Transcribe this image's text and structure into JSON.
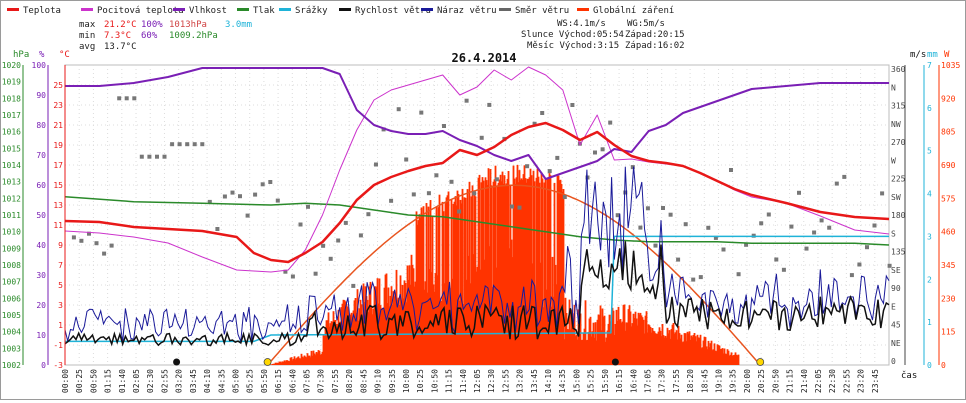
{
  "chart_data": {
    "type": "line",
    "title": "26.4.2014",
    "legend": [
      {
        "name": "Teplota",
        "color": "#e81818"
      },
      {
        "name": "Pocitová teplota",
        "color": "#cc33cc"
      },
      {
        "name": "Vlhkost",
        "color": "#7a1fb5"
      },
      {
        "name": "Tlak",
        "color": "#2a8a2a"
      },
      {
        "name": "Srážky",
        "color": "#1fb3d8"
      },
      {
        "name": "Rychlost větru",
        "color": "#111111"
      },
      {
        "name": "Náraz větru",
        "color": "#1a1a99"
      },
      {
        "name": "Směr větru",
        "color": "#666666"
      },
      {
        "name": "Globální záření",
        "color": "#ff3300"
      }
    ],
    "summary": {
      "max_label": "max",
      "max_temp": "21.2°C",
      "max_hum": "100%",
      "max_press": "1013hPa",
      "max_rain": "3.0mm",
      "min_label": "min",
      "min_temp": "7.3°C",
      "min_hum": "60%",
      "min_press": "1009.2hPa",
      "avg_label": "avg",
      "avg_temp": "13.7°C"
    },
    "info": {
      "ws": "WS:4.1m/s",
      "wg": "WG:5m/s",
      "sun": "Slunce Východ:05:54",
      "sun_set": "Západ:20:15",
      "moon": "Měsíc Východ:3:15",
      "moon_set": "Západ:16:02"
    },
    "axes": {
      "hpa_unit": "hPa",
      "pct_unit": "%",
      "c_unit": "°C",
      "ms_unit": "m/s",
      "mm_unit": "mm",
      "w_unit": "W",
      "hpa_ticks": [
        "1020",
        "1019",
        "1018",
        "1017",
        "1016",
        "1015",
        "1014",
        "1013",
        "1012",
        "1011",
        "1010",
        "1009",
        "1008",
        "1007",
        "1006",
        "1005",
        "1004",
        "1003",
        "1002"
      ],
      "pct_ticks": [
        "100",
        "90",
        "80",
        "70",
        "60",
        "50",
        "40",
        "30",
        "20",
        "10",
        "0"
      ],
      "c_ticks": [
        "25",
        "23",
        "21",
        "19",
        "17",
        "15",
        "13",
        "11",
        "9",
        "7",
        "5",
        "3",
        "1",
        "-1",
        "-3"
      ],
      "dir_ticks": [
        "360",
        "N",
        "315",
        "NW",
        "270",
        "W",
        "225",
        "SW",
        "180",
        "S",
        "135",
        "SE",
        "90",
        "E",
        "45",
        "NE",
        "0"
      ],
      "mm_ticks": [
        "7",
        "6",
        "5",
        "4",
        "3",
        "2",
        "1",
        "0"
      ],
      "w_ticks": [
        "1035",
        "920",
        "805",
        "690",
        "575",
        "460",
        "345",
        "230",
        "115",
        "0"
      ],
      "time_ticks": [
        "00:00",
        "00:25",
        "00:50",
        "01:15",
        "01:40",
        "02:05",
        "02:30",
        "02:55",
        "03:20",
        "03:45",
        "04:10",
        "04:35",
        "05:00",
        "05:25",
        "05:50",
        "06:15",
        "06:40",
        "07:05",
        "07:30",
        "07:55",
        "08:20",
        "08:45",
        "09:10",
        "09:35",
        "10:00",
        "10:25",
        "10:50",
        "11:15",
        "11:40",
        "12:05",
        "12:30",
        "12:55",
        "13:20",
        "13:45",
        "14:10",
        "14:35",
        "15:00",
        "15:25",
        "15:50",
        "16:15",
        "16:40",
        "17:05",
        "17:30",
        "17:55",
        "18:20",
        "18:45",
        "19:10",
        "19:35",
        "20:00",
        "20:25",
        "20:50",
        "21:15",
        "21:40",
        "22:05",
        "22:30",
        "22:55",
        "23:20",
        "23:45"
      ],
      "time_unit": "čas"
    },
    "ranges": {
      "temp_c": [
        -3,
        27
      ],
      "humidity_pct": [
        0,
        100
      ],
      "pressure_hpa": [
        1002,
        1020
      ],
      "wind_ms": [
        0,
        7
      ],
      "rain_mm": [
        0,
        7
      ],
      "radiation_w": [
        0,
        1035
      ],
      "direction_deg": [
        0,
        360
      ]
    },
    "series": [
      {
        "name": "Teplota",
        "unit": "°C",
        "x_hours": [
          0,
          1,
          2,
          3,
          4,
          5,
          5.5,
          6,
          6.5,
          7,
          7.5,
          8,
          8.5,
          9,
          9.5,
          10,
          10.5,
          11,
          11.5,
          12,
          12.5,
          13,
          13.5,
          14,
          14.5,
          15,
          15.5,
          16,
          16.5,
          17,
          17.5,
          18,
          18.5,
          19,
          19.5,
          20,
          21,
          22,
          23,
          24
        ],
        "values": [
          11.4,
          11.3,
          10.8,
          10.6,
          10.4,
          9.8,
          8.2,
          7.5,
          7.3,
          8.2,
          9.3,
          11.2,
          13.5,
          15.0,
          15.8,
          16.4,
          16.9,
          17.2,
          18.5,
          18.0,
          18.8,
          20.0,
          20.8,
          21.2,
          20.5,
          19.5,
          20.3,
          19.0,
          17.9,
          17.4,
          17.2,
          16.9,
          16.2,
          15.4,
          14.6,
          14.0,
          13.2,
          12.3,
          11.8,
          11.6
        ]
      },
      {
        "name": "Pocitová teplota",
        "unit": "°C",
        "x_hours": [
          0,
          1,
          2,
          3,
          4,
          5,
          5.5,
          6,
          6.5,
          7,
          7.5,
          8,
          8.5,
          9,
          9.5,
          10,
          10.5,
          11,
          11.5,
          12,
          12.5,
          13,
          13.5,
          14,
          14.5,
          15,
          15.5,
          16,
          16.5,
          17,
          17.5,
          18,
          18.5,
          19,
          19.5,
          20,
          21,
          22,
          23,
          24
        ],
        "values": [
          10.4,
          10.2,
          9.8,
          9.2,
          7.8,
          6.5,
          6.4,
          6.3,
          6.5,
          8.5,
          12.0,
          16.5,
          20.5,
          23.5,
          24.5,
          25.0,
          25.5,
          26.0,
          24.0,
          24.8,
          26.5,
          25.5,
          26.8,
          26.0,
          24.5,
          19.0,
          22.0,
          17.5,
          17.6,
          17.3,
          17.1,
          16.9,
          16.2,
          15.4,
          14.5,
          13.8,
          13.2,
          11.9,
          10.5,
          10.1
        ]
      },
      {
        "name": "Vlhkost",
        "unit": "%",
        "x_hours": [
          0,
          1,
          2,
          3,
          4,
          5,
          6,
          6.5,
          7,
          7.5,
          8,
          8.5,
          9,
          9.5,
          10,
          10.5,
          11,
          11.5,
          12,
          12.5,
          13,
          13.5,
          14,
          14.5,
          15,
          15.5,
          16,
          16.5,
          17,
          17.5,
          18,
          19,
          20,
          21,
          22,
          23,
          24
        ],
        "values": [
          93,
          93,
          94,
          96,
          99,
          99,
          99,
          99,
          99,
          99,
          97,
          85,
          80,
          78,
          77,
          77,
          78,
          75,
          73,
          70,
          68,
          70,
          62,
          64,
          66,
          68,
          72,
          71,
          78,
          80,
          84,
          88,
          92,
          93,
          94,
          94,
          94
        ]
      },
      {
        "name": "Tlak",
        "unit": "hPa",
        "x_hours": [
          0,
          2,
          4,
          6,
          7,
          8,
          9,
          10,
          11,
          12,
          13,
          14,
          15,
          16,
          17,
          18,
          19,
          20,
          21,
          22,
          23,
          24
        ],
        "values": [
          1012.1,
          1011.8,
          1011.7,
          1011.6,
          1011.7,
          1011.6,
          1011.3,
          1011.0,
          1010.9,
          1010.6,
          1010.3,
          1010.0,
          1009.7,
          1009.5,
          1009.4,
          1009.4,
          1009.4,
          1009.3,
          1009.3,
          1009.3,
          1009.3,
          1009.2
        ]
      },
      {
        "name": "Srážky",
        "unit": "mm",
        "x_hours": [
          0,
          5.5,
          6,
          15.9,
          16,
          24
        ],
        "values": [
          0.55,
          0.55,
          0.7,
          0.75,
          3.0,
          3.0
        ]
      }
    ]
  }
}
